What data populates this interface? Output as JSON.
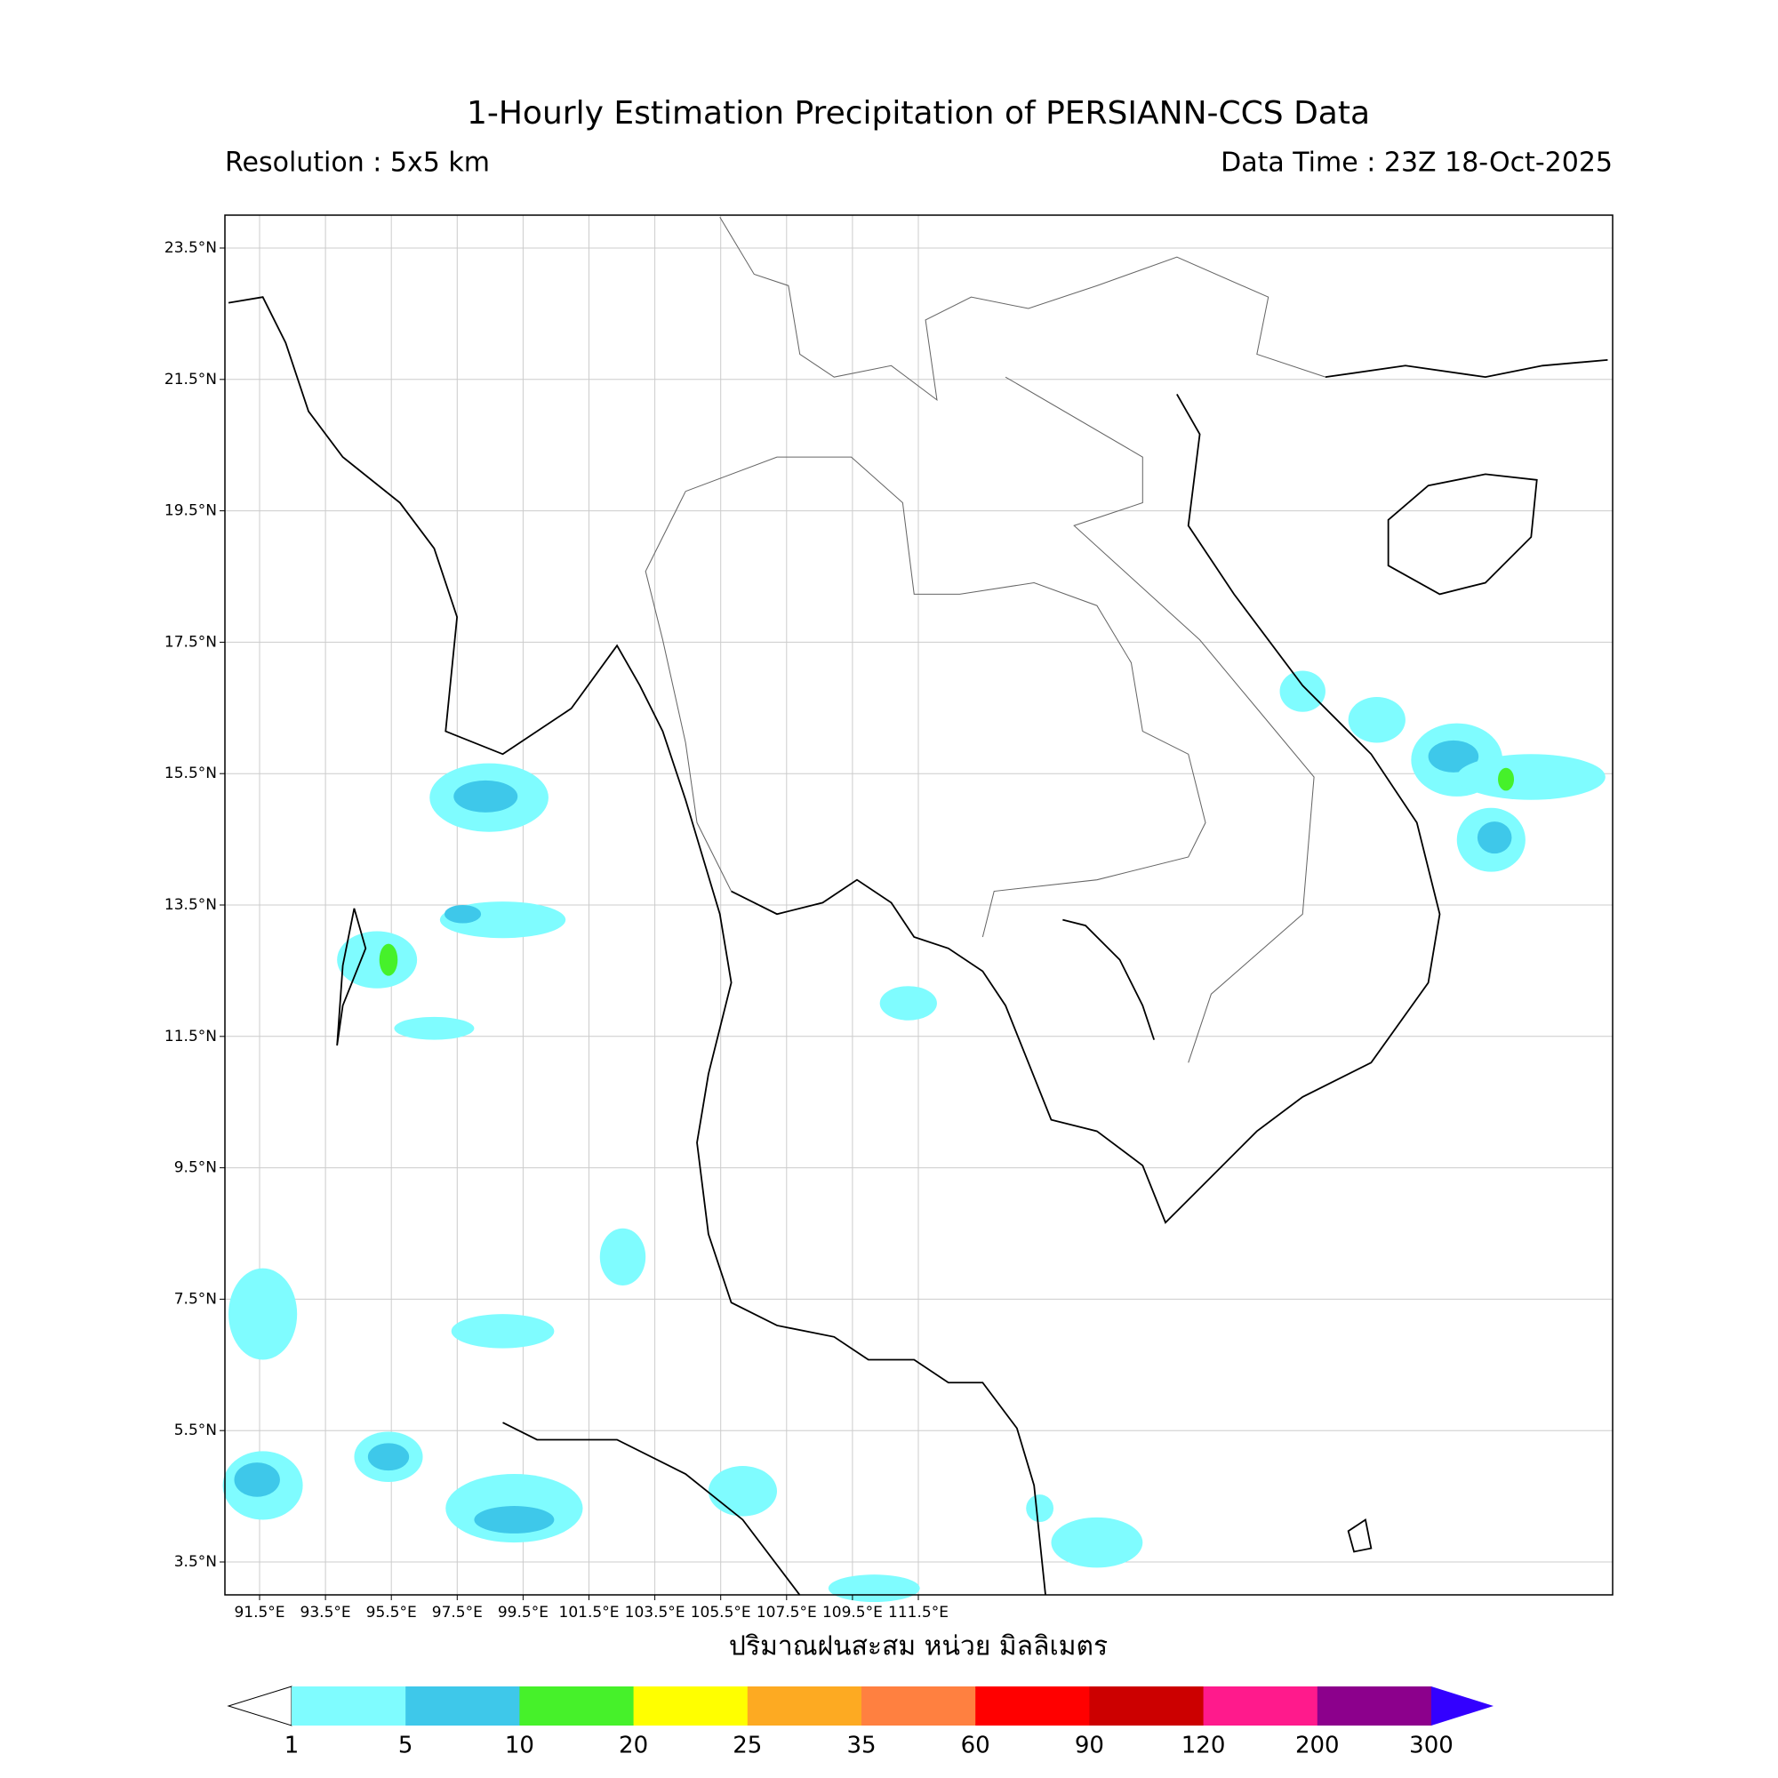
{
  "header": {
    "title": "1-Hourly Estimation Precipitation of PERSIANN-CCS Data",
    "resolution": "Resolution : 5x5 km",
    "data_time": "Data Time : 23Z 18-Oct-2025"
  },
  "map": {
    "x_label": "ปริมาณฝนสะสม หน่วย มิลลิเมตร",
    "lat_ticks": [
      "23.5°N",
      "21.5°N",
      "19.5°N",
      "17.5°N",
      "15.5°N",
      "13.5°N",
      "11.5°N",
      "9.5°N",
      "7.5°N",
      "5.5°N",
      "3.5°N"
    ],
    "lon_ticks": [
      "91.5°E",
      "93.5°E",
      "95.5°E",
      "97.5°E",
      "99.5°E",
      "101.5°E",
      "103.5°E",
      "105.5°E",
      "107.5°E",
      "109.5°E",
      "111.5°E"
    ]
  },
  "colorbar": {
    "levels": [
      1,
      5,
      10,
      20,
      25,
      35,
      60,
      90,
      120,
      200,
      300
    ],
    "colors": [
      "#7ffcff",
      "#3ec8ea",
      "#46f12a",
      "#ffff00",
      "#fdaa22",
      "#ff8040",
      "#ff0000",
      "#cc0000",
      "#ff1a8c",
      "#8c008c",
      "#3300ff"
    ]
  }
}
